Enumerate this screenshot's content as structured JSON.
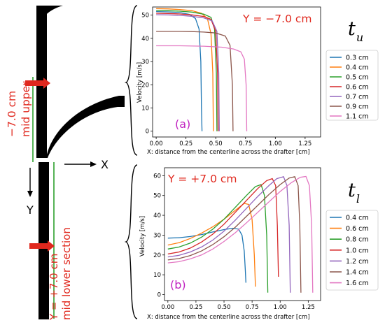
{
  "left_diagram": {
    "upper_label_value": "−7.0 cm",
    "upper_label_desc": "mid upper",
    "lower_label_value": "Y = +7.0 cm",
    "lower_label_desc": "mid lower section",
    "x_axis_label": "X",
    "y_axis_label": "Y"
  },
  "chart_data": [
    {
      "type": "line",
      "panel_label": "(a)",
      "annotation": "Y = −7.0 cm",
      "big_label": "t",
      "big_label_sub": "u",
      "xlabel": "X: distance from the centerline across the drafter [cm]",
      "ylabel": "Velocity [m/s]",
      "xlim": [
        -0.03,
        1.38
      ],
      "ylim": [
        -2.5,
        53.5
      ],
      "xticks": [
        "0.00",
        "0.25",
        "0.50",
        "0.75",
        "1.00",
        "1.25"
      ],
      "yticks": [
        "0",
        "10",
        "20",
        "30",
        "40",
        "50"
      ],
      "grid": false,
      "legend_position": "outside-right",
      "series": [
        {
          "name": "0.3 cm",
          "color": "#1f77b4",
          "x": [
            0,
            0.1,
            0.2,
            0.28,
            0.33,
            0.36,
            0.375,
            0.38,
            0.385
          ],
          "y": [
            51.5,
            51.4,
            51.1,
            50.3,
            48.5,
            44.0,
            30.0,
            10.0,
            0
          ]
        },
        {
          "name": "0.4 cm",
          "color": "#ff7f0e",
          "x": [
            0,
            0.1,
            0.2,
            0.3,
            0.38,
            0.43,
            0.46,
            0.475,
            0.48
          ],
          "y": [
            52.8,
            52.7,
            52.4,
            51.9,
            50.8,
            48.5,
            42.0,
            25.0,
            0
          ]
        },
        {
          "name": "0.5 cm",
          "color": "#2ca02c",
          "x": [
            0,
            0.1,
            0.2,
            0.3,
            0.4,
            0.46,
            0.49,
            0.505,
            0.51
          ],
          "y": [
            52.0,
            51.9,
            51.7,
            51.3,
            50.4,
            49.0,
            44.0,
            25.0,
            0
          ]
        },
        {
          "name": "0.6 cm",
          "color": "#d62728",
          "x": [
            0,
            0.1,
            0.2,
            0.3,
            0.4,
            0.46,
            0.5,
            0.515,
            0.52
          ],
          "y": [
            50.8,
            50.7,
            50.5,
            50.1,
            49.4,
            48.2,
            43.0,
            25.0,
            0
          ]
        },
        {
          "name": "0.7 cm",
          "color": "#9467bd",
          "x": [
            0,
            0.1,
            0.2,
            0.3,
            0.4,
            0.47,
            0.51,
            0.525,
            0.53
          ],
          "y": [
            50.2,
            50.1,
            49.9,
            49.5,
            48.8,
            47.5,
            43.0,
            25.0,
            0
          ]
        },
        {
          "name": "0.9 cm",
          "color": "#8c564b",
          "x": [
            0,
            0.1,
            0.2,
            0.3,
            0.4,
            0.5,
            0.58,
            0.62,
            0.64,
            0.645
          ],
          "y": [
            43.0,
            43.0,
            43.0,
            42.9,
            42.7,
            42.3,
            41.0,
            37.0,
            20.0,
            0
          ]
        },
        {
          "name": "1.1 cm",
          "color": "#e377c2",
          "x": [
            0,
            0.2,
            0.4,
            0.55,
            0.65,
            0.71,
            0.74,
            0.755,
            0.76
          ],
          "y": [
            36.8,
            36.8,
            36.6,
            36.2,
            35.4,
            34.2,
            31.0,
            20.0,
            0
          ]
        }
      ]
    },
    {
      "type": "line",
      "panel_label": "(b)",
      "annotation": "Y = +7.0 cm",
      "big_label": "t",
      "big_label_sub": "l",
      "xlabel": "X: distance from the centerline across the drafter [cm]",
      "ylabel": "Velocity [m/s]",
      "xlim": [
        -0.03,
        1.36
      ],
      "ylim": [
        -3,
        64
      ],
      "xticks": [
        "0.00",
        "0.25",
        "0.50",
        "0.75",
        "1.00",
        "1.25"
      ],
      "yticks": [
        "0",
        "10",
        "20",
        "30",
        "40",
        "50",
        "60"
      ],
      "grid": false,
      "legend_position": "outside-right",
      "series": [
        {
          "name": "0.4 cm",
          "color": "#1f77b4",
          "x": [
            0,
            0.1,
            0.2,
            0.3,
            0.4,
            0.5,
            0.58,
            0.63,
            0.66,
            0.68,
            0.69,
            0.695
          ],
          "y": [
            28.5,
            28.7,
            29.3,
            30.3,
            31.6,
            32.8,
            33.5,
            33.0,
            30.0,
            22.0,
            12.0,
            6.0
          ]
        },
        {
          "name": "0.6 cm",
          "color": "#ff7f0e",
          "x": [
            0,
            0.1,
            0.2,
            0.3,
            0.4,
            0.5,
            0.6,
            0.68,
            0.72,
            0.75,
            0.77,
            0.78
          ],
          "y": [
            25.0,
            26.2,
            28.3,
            31.0,
            34.2,
            38.0,
            42.5,
            46.0,
            45.5,
            38.0,
            20.0,
            4.0
          ]
        },
        {
          "name": "0.8 cm",
          "color": "#2ca02c",
          "x": [
            0,
            0.1,
            0.2,
            0.3,
            0.4,
            0.5,
            0.6,
            0.7,
            0.78,
            0.83,
            0.86,
            0.88,
            0.89
          ],
          "y": [
            23.0,
            24.0,
            26.0,
            29.0,
            33.0,
            38.0,
            44.0,
            50.0,
            54.5,
            55.5,
            50.0,
            30.0,
            1.0
          ]
        },
        {
          "name": "1.0 cm",
          "color": "#d62728",
          "x": [
            0,
            0.1,
            0.2,
            0.3,
            0.4,
            0.5,
            0.6,
            0.7,
            0.8,
            0.88,
            0.93,
            0.96,
            0.975,
            0.985
          ],
          "y": [
            20.5,
            21.5,
            23.5,
            26.5,
            30.5,
            35.5,
            41.5,
            47.5,
            53.5,
            57.5,
            58.5,
            55.0,
            35.0,
            9.0
          ]
        },
        {
          "name": "1.2 cm",
          "color": "#9467bd",
          "x": [
            0,
            0.1,
            0.2,
            0.3,
            0.4,
            0.5,
            0.6,
            0.7,
            0.8,
            0.9,
            0.97,
            1.03,
            1.06,
            1.08,
            1.09
          ],
          "y": [
            19.0,
            19.8,
            21.5,
            24.0,
            27.5,
            32.0,
            37.5,
            43.5,
            49.5,
            55.0,
            58.5,
            59.5,
            55.0,
            35.0,
            1.0
          ]
        },
        {
          "name": "1.4 cm",
          "color": "#8c564b",
          "x": [
            0,
            0.1,
            0.2,
            0.3,
            0.4,
            0.5,
            0.6,
            0.7,
            0.8,
            0.9,
            1.0,
            1.08,
            1.13,
            1.16,
            1.175,
            1.185
          ],
          "y": [
            17.5,
            18.2,
            19.7,
            22.0,
            25.2,
            29.2,
            34.0,
            39.5,
            45.0,
            50.5,
            55.5,
            58.8,
            59.5,
            55.0,
            35.0,
            1.0
          ]
        },
        {
          "name": "1.6 cm",
          "color": "#e377c2",
          "x": [
            0,
            0.1,
            0.2,
            0.3,
            0.4,
            0.5,
            0.6,
            0.7,
            0.8,
            0.9,
            1.0,
            1.1,
            1.18,
            1.23,
            1.26,
            1.28,
            1.29
          ],
          "y": [
            16.0,
            16.6,
            18.0,
            20.0,
            23.0,
            26.8,
            31.2,
            36.2,
            41.5,
            46.8,
            52.0,
            56.5,
            59.2,
            59.6,
            55.0,
            35.0,
            1.0
          ]
        }
      ]
    }
  ]
}
